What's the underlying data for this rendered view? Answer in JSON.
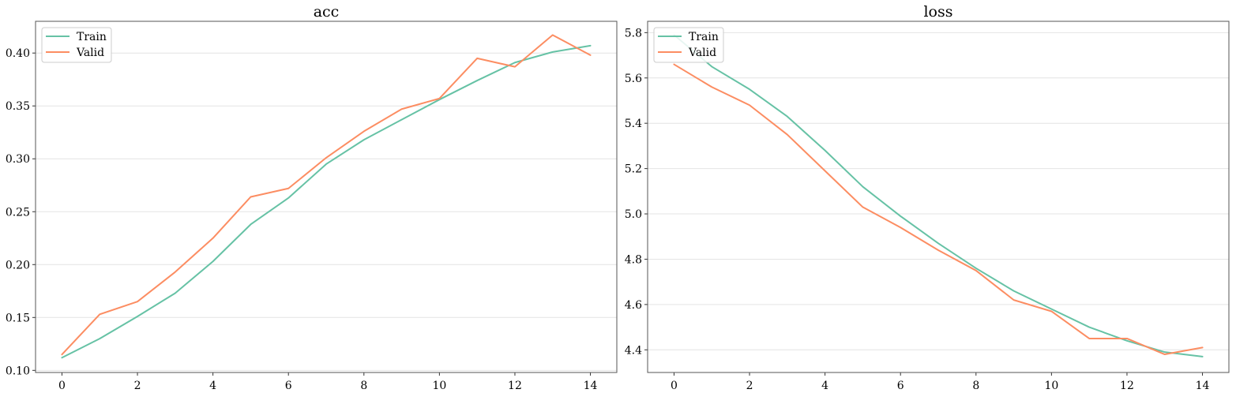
{
  "chart_data": [
    {
      "type": "line",
      "title": "acc",
      "xlabel": "",
      "ylabel": "",
      "x": [
        0,
        1,
        2,
        3,
        4,
        5,
        6,
        7,
        8,
        9,
        10,
        11,
        12,
        13,
        14
      ],
      "xlim": [
        -0.7,
        14.7
      ],
      "ylim": [
        0.098,
        0.43
      ],
      "xticks": [
        0,
        2,
        4,
        6,
        8,
        10,
        12,
        14
      ],
      "yticks": [
        0.1,
        0.15,
        0.2,
        0.25,
        0.3,
        0.35,
        0.4
      ],
      "ytick_decimals": 2,
      "grid": "y",
      "legend": "top-left",
      "series": [
        {
          "name": "Train",
          "color": "#66c2a5",
          "values": [
            0.112,
            0.13,
            0.151,
            0.173,
            0.203,
            0.238,
            0.263,
            0.295,
            0.318,
            0.337,
            0.356,
            0.374,
            0.391,
            0.401,
            0.407
          ]
        },
        {
          "name": "Valid",
          "color": "#fc8d62",
          "values": [
            0.115,
            0.153,
            0.165,
            0.193,
            0.225,
            0.264,
            0.272,
            0.301,
            0.326,
            0.347,
            0.357,
            0.395,
            0.387,
            0.417,
            0.398
          ]
        }
      ]
    },
    {
      "type": "line",
      "title": "loss",
      "xlabel": "",
      "ylabel": "",
      "x": [
        0,
        1,
        2,
        3,
        4,
        5,
        6,
        7,
        8,
        9,
        10,
        11,
        12,
        13,
        14
      ],
      "xlim": [
        -0.7,
        14.7
      ],
      "ylim": [
        4.3,
        5.85
      ],
      "xticks": [
        0,
        2,
        4,
        6,
        8,
        10,
        12,
        14
      ],
      "yticks": [
        4.4,
        4.6,
        4.8,
        5.0,
        5.2,
        5.4,
        5.6,
        5.8
      ],
      "ytick_decimals": 1,
      "grid": "y",
      "legend": "top-left",
      "series": [
        {
          "name": "Train",
          "color": "#66c2a5",
          "values": [
            5.79,
            5.65,
            5.55,
            5.43,
            5.28,
            5.12,
            4.99,
            4.87,
            4.76,
            4.66,
            4.58,
            4.5,
            4.44,
            4.39,
            4.37
          ]
        },
        {
          "name": "Valid",
          "color": "#fc8d62",
          "values": [
            5.66,
            5.56,
            5.48,
            5.35,
            5.19,
            5.03,
            4.94,
            4.84,
            4.75,
            4.62,
            4.57,
            4.45,
            4.45,
            4.38,
            4.41
          ]
        }
      ]
    }
  ]
}
